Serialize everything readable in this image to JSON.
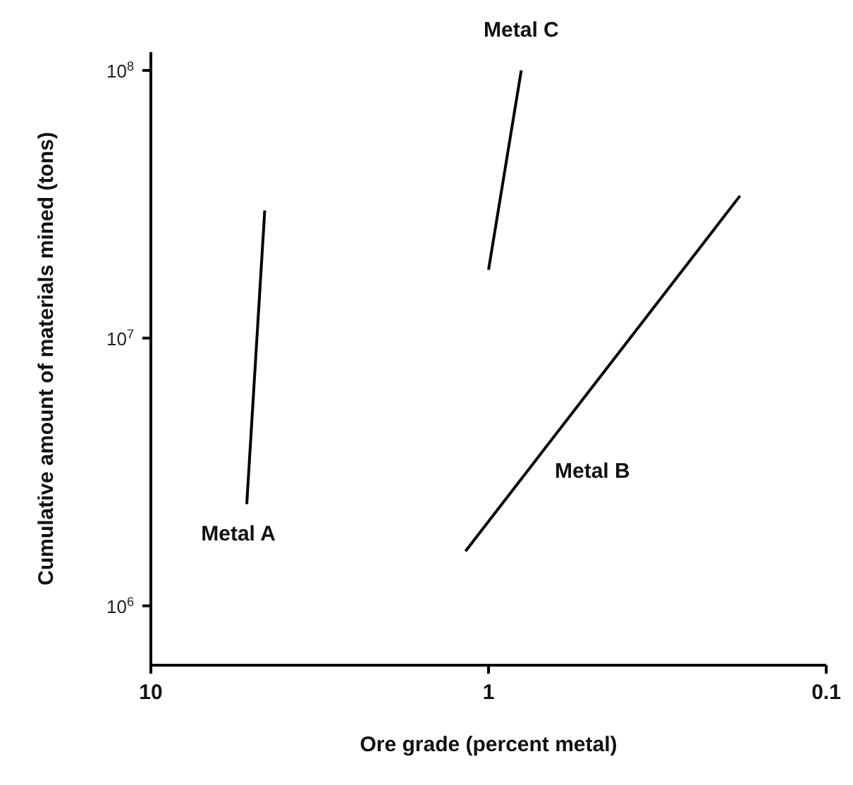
{
  "chart_data": {
    "type": "line",
    "xlabel": "Ore grade (percent metal)",
    "ylabel": "Cumulative amount of materials mined (tons)",
    "log": "xy",
    "grid": false,
    "legend": false,
    "marker": "none",
    "line_style": "solid",
    "xlim": [
      10,
      0.1
    ],
    "xticks": [
      10,
      1,
      0.1
    ],
    "ylim": [
      600000,
      117000000
    ],
    "yticks": [
      {
        "value": 1000000,
        "label": "10$^{6}$"
      },
      {
        "value": 10000000,
        "label": "10$^{7}$"
      },
      {
        "value": 100000000,
        "label": "10$^{8}$"
      }
    ],
    "series": [
      {
        "name": "Metal A",
        "color": "#000000",
        "x": [
          5.2,
          4.6
        ],
        "values": [
          2400000,
          30000000
        ]
      },
      {
        "name": "Metal B",
        "color": "#000000",
        "x": [
          1.17,
          0.18
        ],
        "values": [
          1600000,
          34000000
        ]
      },
      {
        "name": "Metal C",
        "color": "#000000",
        "x": [
          1.0,
          0.8
        ],
        "values": [
          18000000,
          100000000
        ]
      }
    ]
  }
}
